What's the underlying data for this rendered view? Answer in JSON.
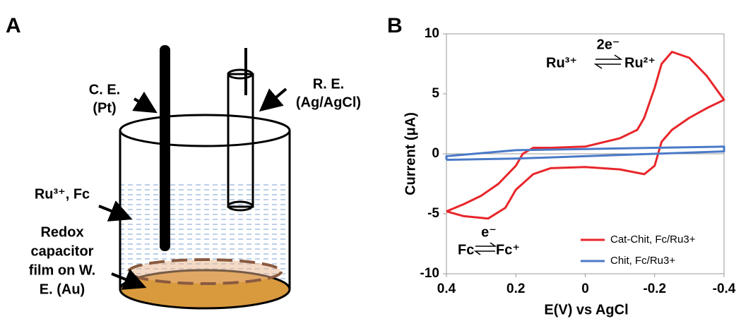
{
  "panel_a": {
    "letter": "A",
    "labels": [
      "C. E.",
      "(Pt)",
      "R. E.",
      "(Ag/AgCl)",
      "Ru³⁺, Fc",
      "Redox",
      "capacitor",
      "film on W.",
      "E. (Au)"
    ]
  },
  "chart_data": {
    "type": "line",
    "letter": "B",
    "xlabel": "E(V) vs AgCl",
    "ylabel": "Current (μA)",
    "xlim": [
      0.4,
      -0.4
    ],
    "xticks": [
      0.4,
      0.2,
      0,
      -0.2,
      -0.4
    ],
    "ylim": [
      -10,
      10
    ],
    "yticks": [
      -10,
      -5,
      0,
      5,
      10
    ],
    "legend": "lower right",
    "annotations": [
      "Ru³⁺",
      "2e⁻",
      "Ru²⁺",
      "Fc",
      "e⁻",
      "Fc⁺"
    ],
    "series": [
      {
        "name": "Cat-Chit, Fc/Ru3+",
        "color": "#e8262a",
        "x": [
          0.4,
          0.35,
          0.28,
          0.23,
          0.2,
          0.15,
          0.1,
          0,
          -0.1,
          -0.17,
          -0.2,
          -0.22,
          -0.25,
          -0.3,
          -0.35,
          -0.4,
          -0.35,
          -0.3,
          -0.25,
          -0.22,
          -0.2,
          -0.17,
          -0.15,
          -0.1,
          0,
          0.1,
          0.15,
          0.18,
          0.2,
          0.25,
          0.3,
          0.35,
          0.4
        ],
        "values": [
          -4.8,
          -5.2,
          -5.4,
          -4.5,
          -3,
          -1.7,
          -1.2,
          -1.1,
          -1.3,
          -1.7,
          -1,
          1,
          2,
          3,
          3.8,
          4.5,
          6.5,
          8,
          8.5,
          7.5,
          5.5,
          3,
          2,
          1.3,
          0.6,
          0.5,
          0.5,
          0,
          -1,
          -2.5,
          -3.5,
          -4.2,
          -4.8
        ]
      },
      {
        "name": "Chit, Fc/Ru3+",
        "color": "#4a7ac7",
        "x": [
          0.4,
          0.2,
          0,
          -0.2,
          -0.4,
          -0.4,
          -0.2,
          0,
          0.2,
          0.4,
          0.4
        ],
        "values": [
          -0.5,
          -0.4,
          -0.2,
          0,
          0.2,
          0.6,
          0.5,
          0.4,
          0.3,
          -0.2,
          -0.5
        ]
      }
    ]
  }
}
